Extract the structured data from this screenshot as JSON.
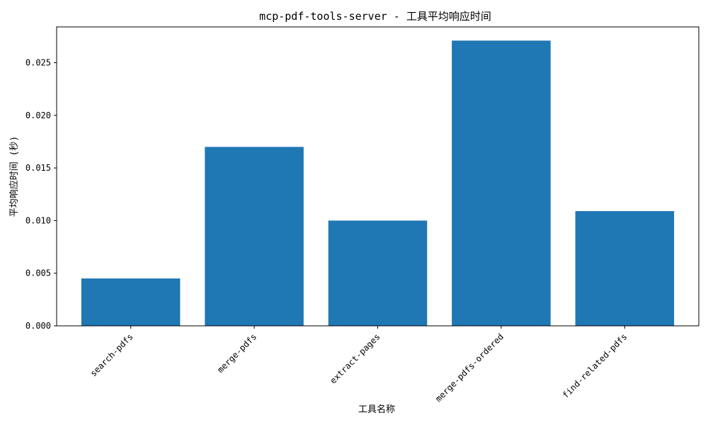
{
  "chart_data": {
    "type": "bar",
    "title": "mcp-pdf-tools-server - 工具平均响应时间",
    "xlabel": "工具名称",
    "ylabel": "平均响应时间 (秒)",
    "categories": [
      "search-pdfs",
      "merge-pdfs",
      "extract-pages",
      "merge-pdfs-ordered",
      "find-related-pdfs"
    ],
    "values": [
      0.0045,
      0.017,
      0.01,
      0.0271,
      0.0109
    ],
    "ylim": [
      0,
      0.0284
    ],
    "yticks": [
      "0.000",
      "0.005",
      "0.010",
      "0.015",
      "0.020",
      "0.025"
    ],
    "grid": false,
    "bar_color": "#1f77b4"
  }
}
